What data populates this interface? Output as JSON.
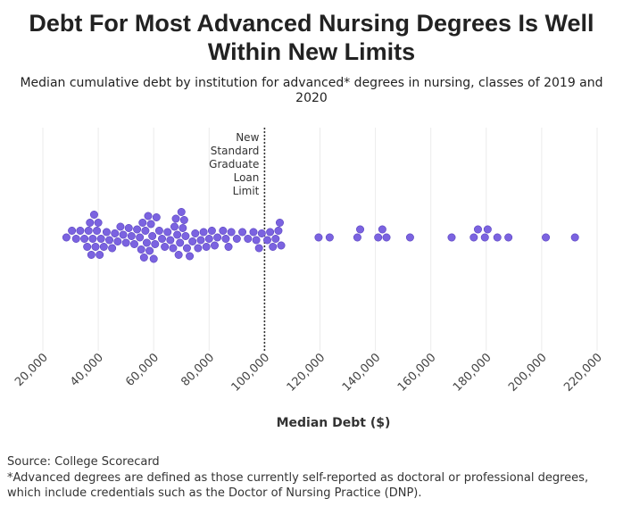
{
  "title": "Debt For Most Advanced Nursing Degrees Is Well Within New Limits",
  "subtitle": "Median cumulative debt by institution for advanced* degrees in nursing, classes of 2019 and 2020",
  "source": "Source: College Scorecard",
  "note": "*Advanced degrees are defined as those currently self-reported as doctoral or professional degrees, which include credentials such as the Doctor of Nursing Practice (DNP).",
  "colors": {
    "dot": "#7b63e0",
    "dot_stroke": "#5a44c0",
    "grid": "#ebebeb",
    "reference": "#333333"
  },
  "chart_data": {
    "type": "scatter",
    "subtype": "beeswarm",
    "xlabel": "Median Debt ($)",
    "ylabel": "",
    "xlim": [
      20000,
      220000
    ],
    "x_ticks": [
      20000,
      40000,
      60000,
      80000,
      100000,
      120000,
      140000,
      160000,
      180000,
      200000,
      220000
    ],
    "x_tick_labels": [
      "20,000",
      "40,000",
      "60,000",
      "80,000",
      "100,000",
      "120,000",
      "140,000",
      "160,000",
      "180,000",
      "200,000",
      "220,000"
    ],
    "grid": true,
    "reference_line": {
      "value": 100000,
      "label_lines": [
        "New",
        "Standard",
        "Graduate",
        "Loan",
        "Limit"
      ]
    },
    "values": [
      28500,
      30500,
      32000,
      33500,
      35000,
      36000,
      36500,
      37000,
      37500,
      38000,
      38500,
      39000,
      39500,
      40000,
      40500,
      41000,
      42000,
      43000,
      44000,
      45000,
      46000,
      47000,
      48000,
      49000,
      50000,
      51000,
      52000,
      53000,
      54000,
      55000,
      55500,
      56000,
      56500,
      57000,
      57500,
      58000,
      58500,
      59000,
      59500,
      60000,
      60500,
      61000,
      62000,
      63000,
      64000,
      65000,
      66000,
      67000,
      67500,
      68000,
      68500,
      69000,
      69500,
      70000,
      70500,
      71000,
      71500,
      72000,
      73000,
      74000,
      75000,
      76000,
      77000,
      78000,
      79000,
      80000,
      81000,
      82000,
      83000,
      85000,
      86000,
      87000,
      88000,
      90000,
      92000,
      94000,
      96000,
      97000,
      98000,
      99000,
      101000,
      102000,
      103000,
      104000,
      105000,
      105500,
      106000,
      119500,
      123500,
      133500,
      134500,
      141000,
      142500,
      144000,
      152500,
      167500,
      175500,
      177000,
      179500,
      180500,
      184000,
      188000,
      201500,
      212000
    ]
  }
}
